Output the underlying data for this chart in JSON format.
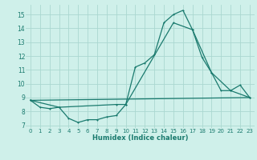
{
  "xlabel": "Humidex (Indice chaleur)",
  "bg_color": "#cff0ea",
  "grid_color": "#aad8d0",
  "line_color": "#1a7a6e",
  "xlim": [
    -0.5,
    23.5
  ],
  "ylim": [
    6.8,
    15.7
  ],
  "xticks": [
    0,
    1,
    2,
    3,
    4,
    5,
    6,
    7,
    8,
    9,
    10,
    11,
    12,
    13,
    14,
    15,
    16,
    17,
    18,
    19,
    20,
    21,
    22,
    23
  ],
  "yticks": [
    7,
    8,
    9,
    10,
    11,
    12,
    13,
    14,
    15
  ],
  "line1_x": [
    0,
    1,
    2,
    3,
    4,
    5,
    6,
    7,
    8,
    9,
    10,
    11,
    12,
    13,
    14,
    15,
    16,
    17,
    18,
    19,
    20,
    21,
    22,
    23
  ],
  "line1_y": [
    8.8,
    8.3,
    8.2,
    8.3,
    7.5,
    7.2,
    7.4,
    7.4,
    7.6,
    7.7,
    8.5,
    11.2,
    11.5,
    12.1,
    14.4,
    15.0,
    15.3,
    13.9,
    11.9,
    10.8,
    9.5,
    9.5,
    9.9,
    9.0
  ],
  "line2_x": [
    0,
    3,
    9,
    10,
    15,
    17,
    19,
    21,
    23
  ],
  "line2_y": [
    8.8,
    8.3,
    8.5,
    8.5,
    14.4,
    13.9,
    10.8,
    9.5,
    9.0
  ],
  "line3_x": [
    0,
    23
  ],
  "line3_y": [
    8.8,
    9.0
  ]
}
